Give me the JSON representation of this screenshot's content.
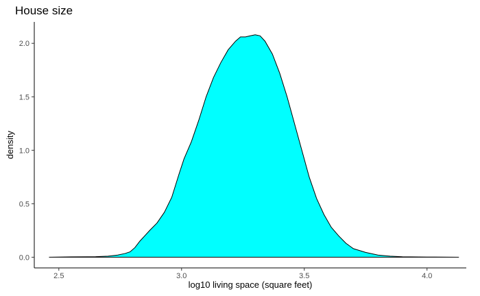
{
  "chart_data": {
    "type": "area",
    "title": "House size",
    "xlabel": "log10 living space (square feet)",
    "ylabel": "density",
    "xlim": [
      2.4,
      4.16
    ],
    "ylim": [
      -0.1,
      2.2
    ],
    "x_ticks": [
      {
        "value": 2.5,
        "label": "2.5"
      },
      {
        "value": 3.0,
        "label": "3.0"
      },
      {
        "value": 3.5,
        "label": "3.5"
      },
      {
        "value": 4.0,
        "label": "4.0"
      }
    ],
    "y_ticks": [
      {
        "value": 0.0,
        "label": "0.0"
      },
      {
        "value": 0.5,
        "label": "0.5"
      },
      {
        "value": 1.0,
        "label": "1.0"
      },
      {
        "value": 1.5,
        "label": "1.5"
      },
      {
        "value": 2.0,
        "label": "2.0"
      }
    ],
    "grid": false,
    "fill_color": "#00ffff",
    "line_color": "#000000",
    "series": [
      {
        "x": [
          2.46,
          2.55,
          2.65,
          2.7,
          2.74,
          2.77,
          2.79,
          2.81,
          2.83,
          2.85,
          2.87,
          2.9,
          2.93,
          2.96,
          2.99,
          3.01,
          3.04,
          3.07,
          3.1,
          3.13,
          3.16,
          3.19,
          3.22,
          3.24,
          3.26,
          3.28,
          3.3,
          3.32,
          3.34,
          3.37,
          3.4,
          3.43,
          3.46,
          3.49,
          3.52,
          3.55,
          3.58,
          3.61,
          3.64,
          3.67,
          3.7,
          3.75,
          3.8,
          3.85,
          3.9,
          4.0,
          4.13
        ],
        "y": [
          0.0,
          0.003,
          0.005,
          0.01,
          0.02,
          0.035,
          0.05,
          0.09,
          0.15,
          0.2,
          0.25,
          0.32,
          0.42,
          0.56,
          0.78,
          0.92,
          1.08,
          1.28,
          1.5,
          1.68,
          1.82,
          1.94,
          2.02,
          2.06,
          2.06,
          2.07,
          2.08,
          2.07,
          2.02,
          1.9,
          1.72,
          1.5,
          1.25,
          1.0,
          0.75,
          0.55,
          0.4,
          0.28,
          0.2,
          0.13,
          0.08,
          0.045,
          0.02,
          0.01,
          0.004,
          0.002,
          0.0
        ]
      }
    ]
  }
}
